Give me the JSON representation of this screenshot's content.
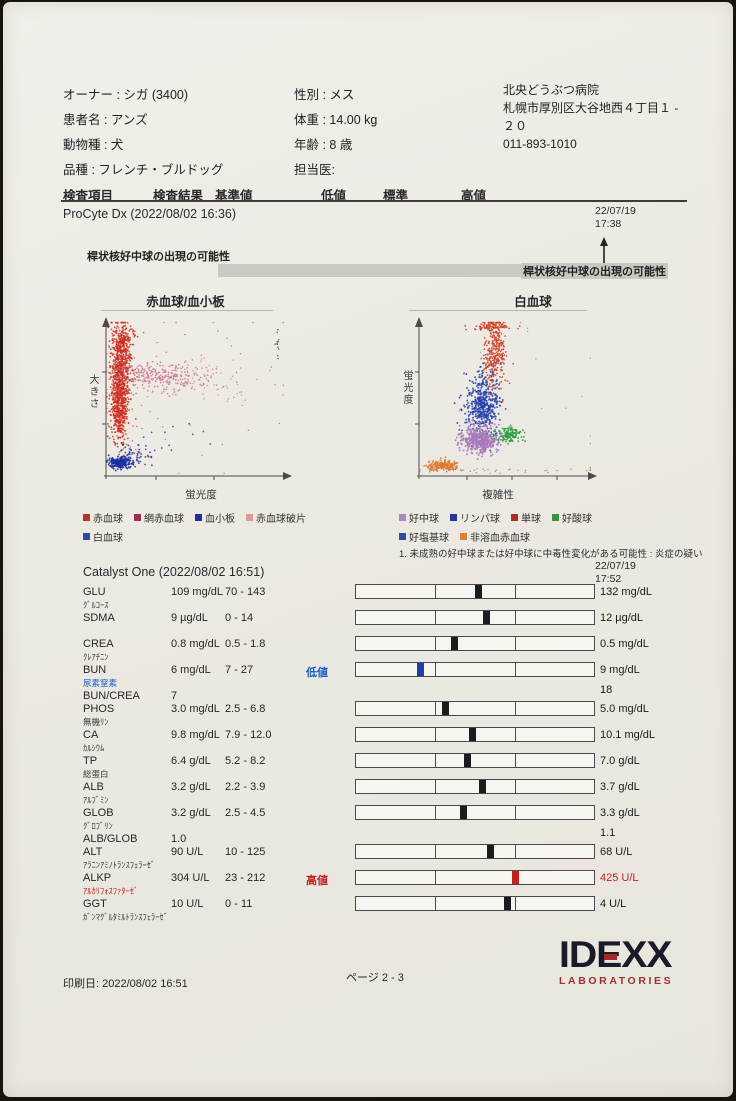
{
  "patient": {
    "left": [
      {
        "label": "オーナー :",
        "value": "シガ (3400)"
      },
      {
        "label": "患者名 :",
        "value": "アンズ"
      },
      {
        "label": "動物種 :",
        "value": "犬"
      },
      {
        "label": "品種 :",
        "value": "フレンチ・ブルドッグ"
      }
    ],
    "mid": [
      {
        "label": "性別 :",
        "value": "メス"
      },
      {
        "label": "体重 :",
        "value": "14.00 kg"
      },
      {
        "label": "年齢 :",
        "value": "8 歳"
      },
      {
        "label": "担当医:",
        "value": ""
      }
    ]
  },
  "clinic": {
    "lines": [
      "北央どうぶつ病院",
      "札幌市厚別区大谷地西４丁目１ -",
      "２０",
      "011-893-1010"
    ]
  },
  "columns": {
    "item": "検査項目",
    "result": "検査結果",
    "range": "基準値",
    "low": "低値",
    "normal": "標準",
    "high": "高値"
  },
  "procyte": {
    "title": "ProCyte Dx (2022/08/02 16:36)",
    "prev_date": "22/07/19",
    "prev_time": "17:38",
    "note_left": "桿状核好中球の出現の可能性",
    "note_right": "桿状核好中球の出現の可能性"
  },
  "catalyst": {
    "title": "Catalyst One (2022/08/02 16:51)",
    "prev_date": "22/07/19",
    "prev_time": "17:52",
    "rows": [
      {
        "code": "GLU",
        "sub": "ｸﾞﾙｺｰｽ",
        "result": "109 mg/dL",
        "range": "70 - 143",
        "flag": "",
        "prev": "132 mg/dL",
        "marker": 0.511,
        "tone": "",
        "prev_tone": ""
      },
      {
        "code": "SDMA",
        "sub": "",
        "result": "9 µg/dL",
        "range": "0 - 14",
        "flag": "",
        "prev": "12 µg/dL",
        "marker": 0.548,
        "tone": "",
        "prev_tone": ""
      },
      {
        "code": "CREA",
        "sub": "ｸﾚｱﾁﾆﾝ",
        "result": "0.8 mg/dL",
        "range": "0.5 - 1.8",
        "flag": "",
        "prev": "0.5 mg/dL",
        "marker": 0.41,
        "tone": "",
        "prev_tone": ""
      },
      {
        "code": "BUN",
        "sub": "尿素窒素",
        "result": "6 mg/dL",
        "range": "7 - 27",
        "flag": "低値",
        "prev": "9 mg/dL",
        "marker": 0.27,
        "tone": "blue",
        "prev_tone": ""
      },
      {
        "code": "BUN/CREA",
        "sub": "",
        "result": "7",
        "range": "",
        "flag": "",
        "prev": "18",
        "marker": null,
        "tone": "",
        "prev_tone": ""
      },
      {
        "code": "PHOS",
        "sub": "無機ﾘﾝ",
        "result": "3.0 mg/dL",
        "range": "2.5 - 6.8",
        "flag": "",
        "prev": "5.0 mg/dL",
        "marker": 0.372,
        "tone": "",
        "prev_tone": ""
      },
      {
        "code": "CA",
        "sub": "ｶﾙｼｳﾑ",
        "result": "9.8 mg/dL",
        "range": "7.9 - 12.0",
        "flag": "",
        "prev": "10.1 mg/dL",
        "marker": 0.488,
        "tone": "",
        "prev_tone": ""
      },
      {
        "code": "TP",
        "sub": "総蛋白",
        "result": "6.4 g/dL",
        "range": "5.2 - 8.2",
        "flag": "",
        "prev": "7.0 g/dL",
        "marker": 0.467,
        "tone": "",
        "prev_tone": ""
      },
      {
        "code": "ALB",
        "sub": "ｱﾙﾌﾞﾐﾝ",
        "result": "3.2 g/dL",
        "range": "2.2 - 3.9",
        "flag": "",
        "prev": "3.7 g/dL",
        "marker": 0.529,
        "tone": "",
        "prev_tone": ""
      },
      {
        "code": "GLOB",
        "sub": "ｸﾞﾛﾌﾞﾘﾝ",
        "result": "3.2 g/dL",
        "range": "2.5 - 4.5",
        "flag": "",
        "prev": "3.3 g/dL",
        "marker": 0.45,
        "tone": "",
        "prev_tone": ""
      },
      {
        "code": "ALB/GLOB",
        "sub": "",
        "result": "1.0",
        "range": "",
        "flag": "",
        "prev": "1.1",
        "marker": null,
        "tone": "",
        "prev_tone": ""
      },
      {
        "code": "ALT",
        "sub": "ｱﾗﾆﾝｱﾐﾉﾄﾗﾝｽﾌｪﾗｰｾﾞ",
        "result": "90 U/L",
        "range": "10 - 125",
        "flag": "",
        "prev": "68 U/L",
        "marker": 0.565,
        "tone": "",
        "prev_tone": ""
      },
      {
        "code": "ALKP",
        "sub": "ｱﾙｶﾘﾌｫｽﾌｧﾀｰｾﾞ",
        "result": "304 U/L",
        "range": "23 - 212",
        "flag": "高値",
        "prev": "425 U/L",
        "marker": 0.668,
        "tone": "red",
        "prev_tone": "red"
      },
      {
        "code": "GGT",
        "sub": "ｶﾞﾝﾏｸﾞﾙﾀﾐﾙﾄﾗﾝｽﾌｪﾗｰｾﾞ",
        "result": "10 U/L",
        "range": "0 - 11",
        "flag": "",
        "prev": "4 U/L",
        "marker": 0.636,
        "tone": "",
        "prev_tone": ""
      }
    ]
  },
  "chart_data": [
    {
      "type": "scatter",
      "title": "赤血球/血小板",
      "xlabel": "蛍光度",
      "ylabel": "大きさ",
      "legend": [
        {
          "label": "赤血球",
          "color": "#b5372a"
        },
        {
          "label": "網赤血球",
          "color": "#9e2d55"
        },
        {
          "label": "血小板",
          "color": "#1f2f9c"
        },
        {
          "label": "赤血球破片",
          "color": "#dd9a92"
        },
        {
          "label": "白血球",
          "color": "#2a4fa2"
        }
      ],
      "legend_rows": [
        4,
        1
      ],
      "clusters": [
        {
          "series": "赤血球",
          "n": 480,
          "cx": 0.085,
          "cy": 0.3,
          "sx": 0.028,
          "sy": 0.13,
          "color": "#ce2c1f",
          "r": 0.9
        },
        {
          "series": "赤血球",
          "n": 480,
          "cx": 0.075,
          "cy": 0.55,
          "sx": 0.022,
          "sy": 0.13,
          "color": "#ce2c1f",
          "r": 0.9
        },
        {
          "series": "赤血球",
          "n": 140,
          "cx": 0.1,
          "cy": 0.12,
          "sx": 0.03,
          "sy": 0.05,
          "color": "#ce2c1f",
          "r": 0.9
        },
        {
          "series": "赤血球",
          "n": 120,
          "cx": 0.09,
          "cy": 0.45,
          "sx": 0.05,
          "sy": 0.25,
          "color": "#d04a3a",
          "r": 0.8
        },
        {
          "series": "網赤血球",
          "n": 250,
          "cx": 0.3,
          "cy": 0.36,
          "sx": 0.14,
          "sy": 0.05,
          "color": "#ce6f8c",
          "r": 0.85
        },
        {
          "series": "赤血球破片",
          "n": 80,
          "cx": 0.52,
          "cy": 0.38,
          "sx": 0.18,
          "sy": 0.07,
          "color": "#d8899a",
          "r": 0.8
        },
        {
          "series": "血小板",
          "n": 230,
          "cx": 0.075,
          "cy": 0.925,
          "sx": 0.032,
          "sy": 0.018,
          "color": "#1b2f9e",
          "r": 0.95
        },
        {
          "series": "血小板",
          "n": 50,
          "cx": 0.16,
          "cy": 0.88,
          "sx": 0.05,
          "sy": 0.035,
          "color": "#1b2f9e",
          "r": 0.9
        },
        {
          "series": "白血球",
          "n": 18,
          "cx": 0.25,
          "cy": 0.78,
          "sx": 0.12,
          "sy": 0.1,
          "color": "#2742b2",
          "r": 0.9
        },
        {
          "series": "noise",
          "n": 45,
          "cx": 0.5,
          "cy": 0.45,
          "sx": 0.3,
          "sy": 0.3,
          "color": "#82786a",
          "r": 0.7
        },
        {
          "series": "noise",
          "n": 12,
          "cx": 0.965,
          "cy": 0.12,
          "sx": 0.004,
          "sy": 0.05,
          "color": "#555555",
          "r": 0.8
        }
      ]
    },
    {
      "type": "scatter",
      "title": "白血球",
      "xlabel": "複雑性",
      "ylabel": "蛍光度",
      "legend": [
        {
          "label": "好中球",
          "color": "#a88ac2"
        },
        {
          "label": "リンパ球",
          "color": "#27379f"
        },
        {
          "label": "単球",
          "color": "#ae2f28"
        },
        {
          "label": "好酸球",
          "color": "#3c9440"
        },
        {
          "label": "好塩基球",
          "color": "#2a4fa2"
        },
        {
          "label": "非溶血赤血球",
          "color": "#d9822f"
        }
      ],
      "legend_rows": [
        4,
        2
      ],
      "note": "1. 未成熟の好中球または好中球に中毒性変化がある可能性 : 炎症の疑い",
      "clusters": [
        {
          "series": "単球",
          "n": 70,
          "cx": 0.42,
          "cy": 0.035,
          "sx": 0.06,
          "sy": 0.012,
          "color": "#cc3b22",
          "r": 0.9
        },
        {
          "series": "単球",
          "n": 320,
          "cx": 0.44,
          "cy": 0.2,
          "sx": 0.032,
          "sy": 0.13,
          "color": "#cc3b22",
          "r": 0.9
        },
        {
          "series": "リンパ球",
          "n": 480,
          "cx": 0.37,
          "cy": 0.545,
          "sx": 0.048,
          "sy": 0.095,
          "color": "#2340ad",
          "r": 0.95
        },
        {
          "series": "好中球",
          "n": 420,
          "cx": 0.355,
          "cy": 0.775,
          "sx": 0.055,
          "sy": 0.042,
          "color": "#a678bd",
          "r": 1.0
        },
        {
          "series": "好酸球",
          "n": 130,
          "cx": 0.525,
          "cy": 0.735,
          "sx": 0.038,
          "sy": 0.026,
          "color": "#2f9e3c",
          "r": 0.95
        },
        {
          "series": "非溶血赤血球",
          "n": 160,
          "cx": 0.135,
          "cy": 0.945,
          "sx": 0.045,
          "sy": 0.018,
          "color": "#e0762a",
          "r": 0.95
        },
        {
          "series": "noise",
          "n": 40,
          "cx": 0.5,
          "cy": 0.975,
          "sx": 0.33,
          "sy": 0.008,
          "color": "#8a7d5c",
          "r": 0.7
        },
        {
          "series": "noise",
          "n": 15,
          "cx": 0.6,
          "cy": 0.5,
          "sx": 0.3,
          "sy": 0.3,
          "color": "#94917f",
          "r": 0.7
        }
      ]
    }
  ],
  "footer": {
    "printed": "印刷日: 2022/08/02 16:51",
    "page": "ページ 2 - 3",
    "logo_word": "IDEXX",
    "logo_sub": "LABORATORIES"
  },
  "colors": {
    "blue": "#1c3fa8",
    "red": "#c2231e",
    "black": "#1b1b1d",
    "gray_band": "#c9c8c2"
  }
}
